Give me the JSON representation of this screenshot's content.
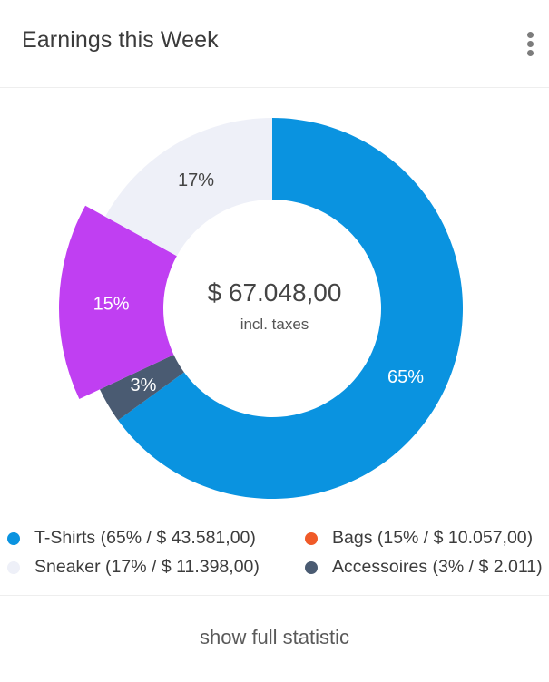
{
  "header": {
    "title": "Earnings this Week",
    "menu_icon": "more-vertical-icon"
  },
  "center": {
    "value": "$ 67.048,00",
    "subtitle": "incl. taxes"
  },
  "chart_data": {
    "type": "pie",
    "variant": "donut",
    "title": "Earnings this Week",
    "total_label": "$ 67.048,00",
    "slices": [
      {
        "name": "T-Shirts",
        "percent": 65,
        "amount": "$ 43.581,00",
        "label": "65%",
        "color": "#0a93e0",
        "label_color": "#ffffff",
        "exploded": false
      },
      {
        "name": "Accessoires",
        "percent": 3,
        "amount": "$ 2.011",
        "label": "3%",
        "color": "#4a5b72",
        "label_color": "#ffffff",
        "exploded": false
      },
      {
        "name": "Bags",
        "percent": 15,
        "amount": "$ 10.057,00",
        "label": "15%",
        "color": "#c03ff2",
        "label_color": "#ffffff",
        "exploded": true
      },
      {
        "name": "Sneaker",
        "percent": 17,
        "amount": "$ 11.398,00",
        "label": "17%",
        "color": "#eef0f8",
        "label_color": "#444444",
        "exploded": false
      }
    ]
  },
  "legend": [
    {
      "text": "T-Shirts (65% / $ 43.581,00)",
      "color": "#0a93e0"
    },
    {
      "text": "Bags (15% / $ 10.057,00)",
      "color": "#f05a28"
    },
    {
      "text": "Sneaker (17% / $ 11.398,00)",
      "color": "#eef0f8"
    },
    {
      "text": "Accessoires (3% / $ 2.011)",
      "color": "#4a5b72"
    }
  ],
  "footer": {
    "link_label": "show full statistic"
  }
}
